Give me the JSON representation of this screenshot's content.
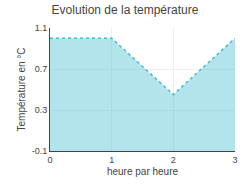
{
  "chart_data": {
    "type": "area",
    "title": "Evolution de la température",
    "x_label": "heure par heure",
    "y_label": "Température en °C",
    "x": [
      0,
      1,
      2,
      3
    ],
    "values": [
      1.0,
      1.0,
      0.45,
      1.0
    ],
    "color": "#44bbcc",
    "line_style": "dotted",
    "xlim": [
      0,
      3
    ],
    "ylim": [
      -0.1,
      1.1
    ],
    "xticks": [
      0,
      1,
      2,
      3
    ],
    "yticks": [
      -0.1,
      0.3,
      0.7,
      1.1
    ],
    "grid": true
  }
}
